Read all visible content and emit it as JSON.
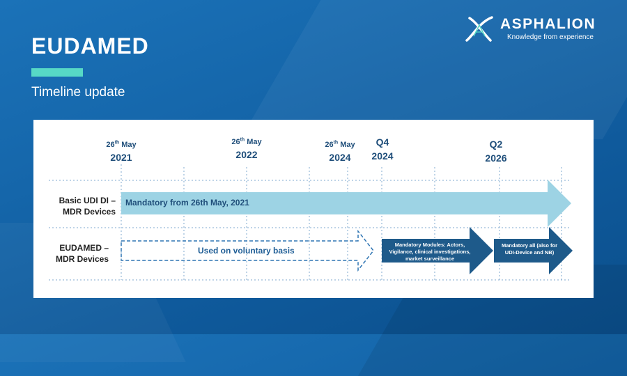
{
  "header": {
    "title": "EUDAMED",
    "subtitle": "Timeline update"
  },
  "logo": {
    "name": "ASPHALION",
    "tagline": "Knowledge from experience"
  },
  "timeline": {
    "dates": [
      {
        "day": "26",
        "suffix": "th",
        "month": "May",
        "year": "2021"
      },
      {
        "day": "26",
        "suffix": "th",
        "month": "May",
        "year": "2022"
      },
      {
        "day": "26",
        "suffix": "th",
        "month": "May",
        "year": "2024"
      }
    ],
    "quarters": [
      {
        "quarter": "Q4",
        "year": "2024"
      },
      {
        "quarter": "Q2",
        "year": "2026"
      }
    ],
    "rows": [
      {
        "label_line1": "Basic UDI DI –",
        "label_line2": "MDR Devices"
      },
      {
        "label_line1": "EUDAMED –",
        "label_line2": "MDR Devices"
      }
    ],
    "arrows": {
      "mandatory": "Mandatory from 26th May, 2021",
      "voluntary": "Used on voluntary basis",
      "modules": "Mandatory Modules: Actors, Vigilance, clinical investigations, market surveillance",
      "all": "Mandatory all (also for UDI-Device and NB)"
    },
    "colors": {
      "light_arrow": "#9dd3e4",
      "dark_arrow": "#1e5a8a",
      "dashed": "#2f75b3",
      "gridline": "#7fa9cf"
    }
  }
}
